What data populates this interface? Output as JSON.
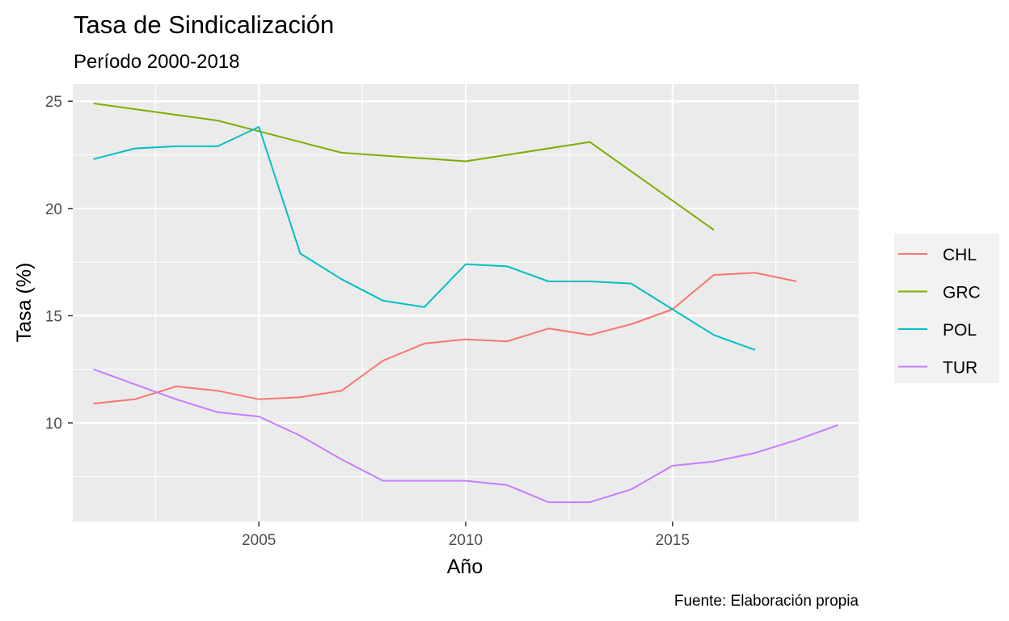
{
  "chart_data": {
    "type": "line",
    "title": "Tasa de Sindicalización",
    "subtitle": "Período 2000-2018",
    "xlabel": "Año",
    "ylabel": "Tasa (%)",
    "caption": "Fuente: Elaboración propia",
    "xlim": [
      2000.5,
      2019.5
    ],
    "ylim": [
      5.4,
      25.8
    ],
    "x_ticks": [
      2005,
      2010,
      2015
    ],
    "x_tick_labels": [
      "2005",
      "2010",
      "2015"
    ],
    "y_ticks": [
      10,
      15,
      20,
      25
    ],
    "y_tick_labels": [
      "10",
      "15",
      "20",
      "25"
    ],
    "grid": true,
    "legend_position": "right",
    "series": [
      {
        "name": "CHL",
        "color": "#F8766D",
        "points": [
          [
            2001,
            10.9
          ],
          [
            2002,
            11.1
          ],
          [
            2003,
            11.7
          ],
          [
            2004,
            11.5
          ],
          [
            2005,
            11.1
          ],
          [
            2006,
            11.2
          ],
          [
            2007,
            11.5
          ],
          [
            2008,
            12.9
          ],
          [
            2009,
            13.7
          ],
          [
            2010,
            13.9
          ],
          [
            2011,
            13.8
          ],
          [
            2012,
            14.4
          ],
          [
            2013,
            14.1
          ],
          [
            2014,
            14.6
          ],
          [
            2015,
            15.3
          ],
          [
            2016,
            16.9
          ],
          [
            2017,
            17.0
          ],
          [
            2018,
            16.6
          ]
        ]
      },
      {
        "name": "GRC",
        "color": "#7CAE00",
        "points": [
          [
            2001,
            24.9
          ],
          [
            2004,
            24.1
          ],
          [
            2005,
            23.6
          ],
          [
            2007,
            22.6
          ],
          [
            2010,
            22.2
          ],
          [
            2013,
            23.1
          ],
          [
            2016,
            19.0
          ]
        ]
      },
      {
        "name": "POL",
        "color": "#00BFC4",
        "points": [
          [
            2001,
            22.3
          ],
          [
            2002,
            22.8
          ],
          [
            2003,
            22.9
          ],
          [
            2004,
            22.9
          ],
          [
            2005,
            23.8
          ],
          [
            2006,
            17.9
          ],
          [
            2007,
            16.7
          ],
          [
            2008,
            15.7
          ],
          [
            2009,
            15.4
          ],
          [
            2010,
            17.4
          ],
          [
            2011,
            17.3
          ],
          [
            2012,
            16.6
          ],
          [
            2013,
            16.6
          ],
          [
            2014,
            16.5
          ],
          [
            2015,
            15.3
          ],
          [
            2016,
            14.1
          ],
          [
            2017,
            13.4
          ]
        ]
      },
      {
        "name": "TUR",
        "color": "#C77CFF",
        "points": [
          [
            2001,
            12.5
          ],
          [
            2002,
            11.8
          ],
          [
            2003,
            11.1
          ],
          [
            2004,
            10.5
          ],
          [
            2005,
            10.3
          ],
          [
            2006,
            9.4
          ],
          [
            2007,
            8.3
          ],
          [
            2008,
            7.3
          ],
          [
            2009,
            7.3
          ],
          [
            2010,
            7.3
          ],
          [
            2011,
            7.1
          ],
          [
            2012,
            6.3
          ],
          [
            2013,
            6.3
          ],
          [
            2014,
            6.9
          ],
          [
            2015,
            8.0
          ],
          [
            2016,
            8.2
          ],
          [
            2017,
            8.6
          ],
          [
            2018,
            9.2
          ],
          [
            2019,
            9.9
          ]
        ]
      }
    ]
  }
}
